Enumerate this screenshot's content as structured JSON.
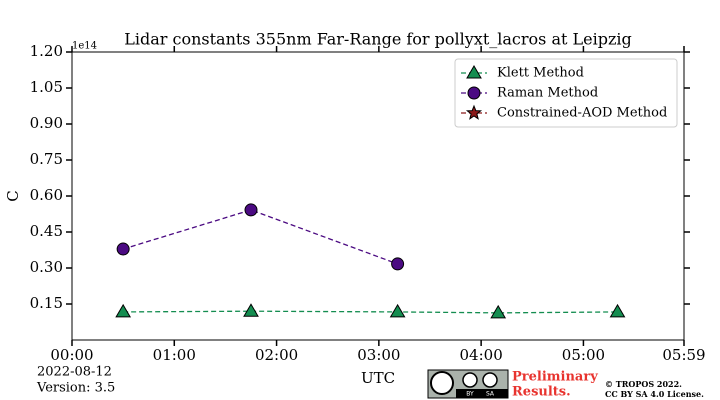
{
  "chart_data": {
    "type": "line",
    "title": "Lidar constants 355nm Far-Range for pollyxt_lacros at Leipzig",
    "y_label": "C",
    "y_offset_text": "1e14",
    "x_label": "UTC",
    "x": [
      30,
      105,
      191,
      250,
      320
    ],
    "xlim": [
      0,
      359
    ],
    "xticks": [
      {
        "value": 0,
        "label": "00:00"
      },
      {
        "value": 60,
        "label": "01:00"
      },
      {
        "value": 120,
        "label": "02:00"
      },
      {
        "value": 180,
        "label": "03:00"
      },
      {
        "value": 240,
        "label": "04:00"
      },
      {
        "value": 300,
        "label": "05:00"
      },
      {
        "value": 359,
        "label": "05:59"
      }
    ],
    "ylim": [
      0,
      1.2
    ],
    "yticks": [
      0.15,
      {
        "value": 0.3,
        "label": "0.30"
      },
      0.45,
      {
        "value": 0.6,
        "label": "0.60"
      },
      0.75,
      {
        "value": 0.9,
        "label": "0.90"
      },
      1.05,
      {
        "value": 1.2,
        "label": "1.20"
      }
    ],
    "legend": "upper right",
    "series": [
      {
        "name": "Klett Method",
        "color": "#148d50",
        "marker": "triangle",
        "values": [
          0.117,
          0.12,
          0.117,
          0.113,
          0.117
        ]
      },
      {
        "name": "Raman Method",
        "color": "#4b0a82",
        "marker": "circle",
        "values": [
          0.379,
          0.542,
          0.317,
          null,
          null
        ]
      },
      {
        "name": "Constrained-AOD Method",
        "color": "#8b1a1a",
        "marker": "star",
        "values": [
          null,
          null,
          null,
          null,
          null
        ]
      }
    ]
  },
  "footer": {
    "date": "2022-08-12",
    "version": "Version: 3.5",
    "preliminary": [
      "Preliminary",
      "Results."
    ],
    "copyright": "© TROPOS 2022.",
    "license": "CC BY SA 4.0 License.",
    "badge": [
      "BY",
      "SA"
    ]
  }
}
